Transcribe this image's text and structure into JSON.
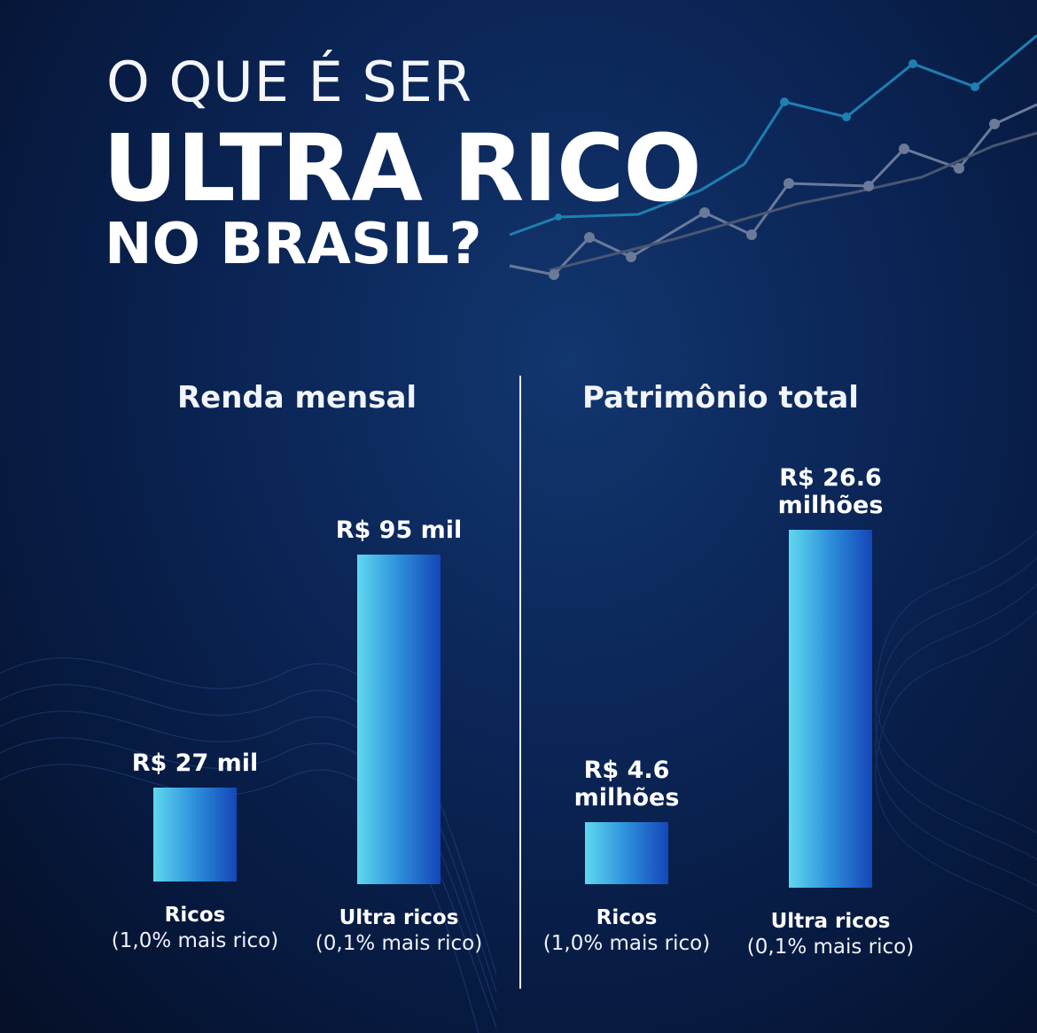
{
  "title": {
    "line1": "O QUE É SER",
    "line2": "ULTRA RICO",
    "line3": "NO BRASIL?"
  },
  "chart_data": [
    {
      "type": "bar",
      "title": "Renda mensal",
      "categories": [
        "Ricos",
        "Ultra ricos"
      ],
      "category_notes": [
        "(1,0% mais rico)",
        "(0,1% mais rico)"
      ],
      "values": [
        27,
        95
      ],
      "unit": "R$ mil",
      "value_labels": [
        "R$  27 mil",
        "R$  95 mil"
      ],
      "ylim": [
        0,
        95
      ],
      "grid": false
    },
    {
      "type": "bar",
      "title": "Patrimônio total",
      "categories": [
        "Ricos",
        "Ultra ricos"
      ],
      "category_notes": [
        "(1,0% mais rico)",
        "(0,1% mais rico)"
      ],
      "values": [
        4.6,
        26.6
      ],
      "unit": "R$ milhões",
      "value_labels": [
        [
          "R$  4.6",
          "milhões"
        ],
        [
          "R$  26.6",
          "milhões"
        ]
      ],
      "ylim": [
        0,
        26.6
      ],
      "grid": false
    }
  ],
  "colors": {
    "background": "#0b2556",
    "bar_light": "#5fd8ee",
    "bar_dark": "#1446b8",
    "text": "#ffffff"
  }
}
